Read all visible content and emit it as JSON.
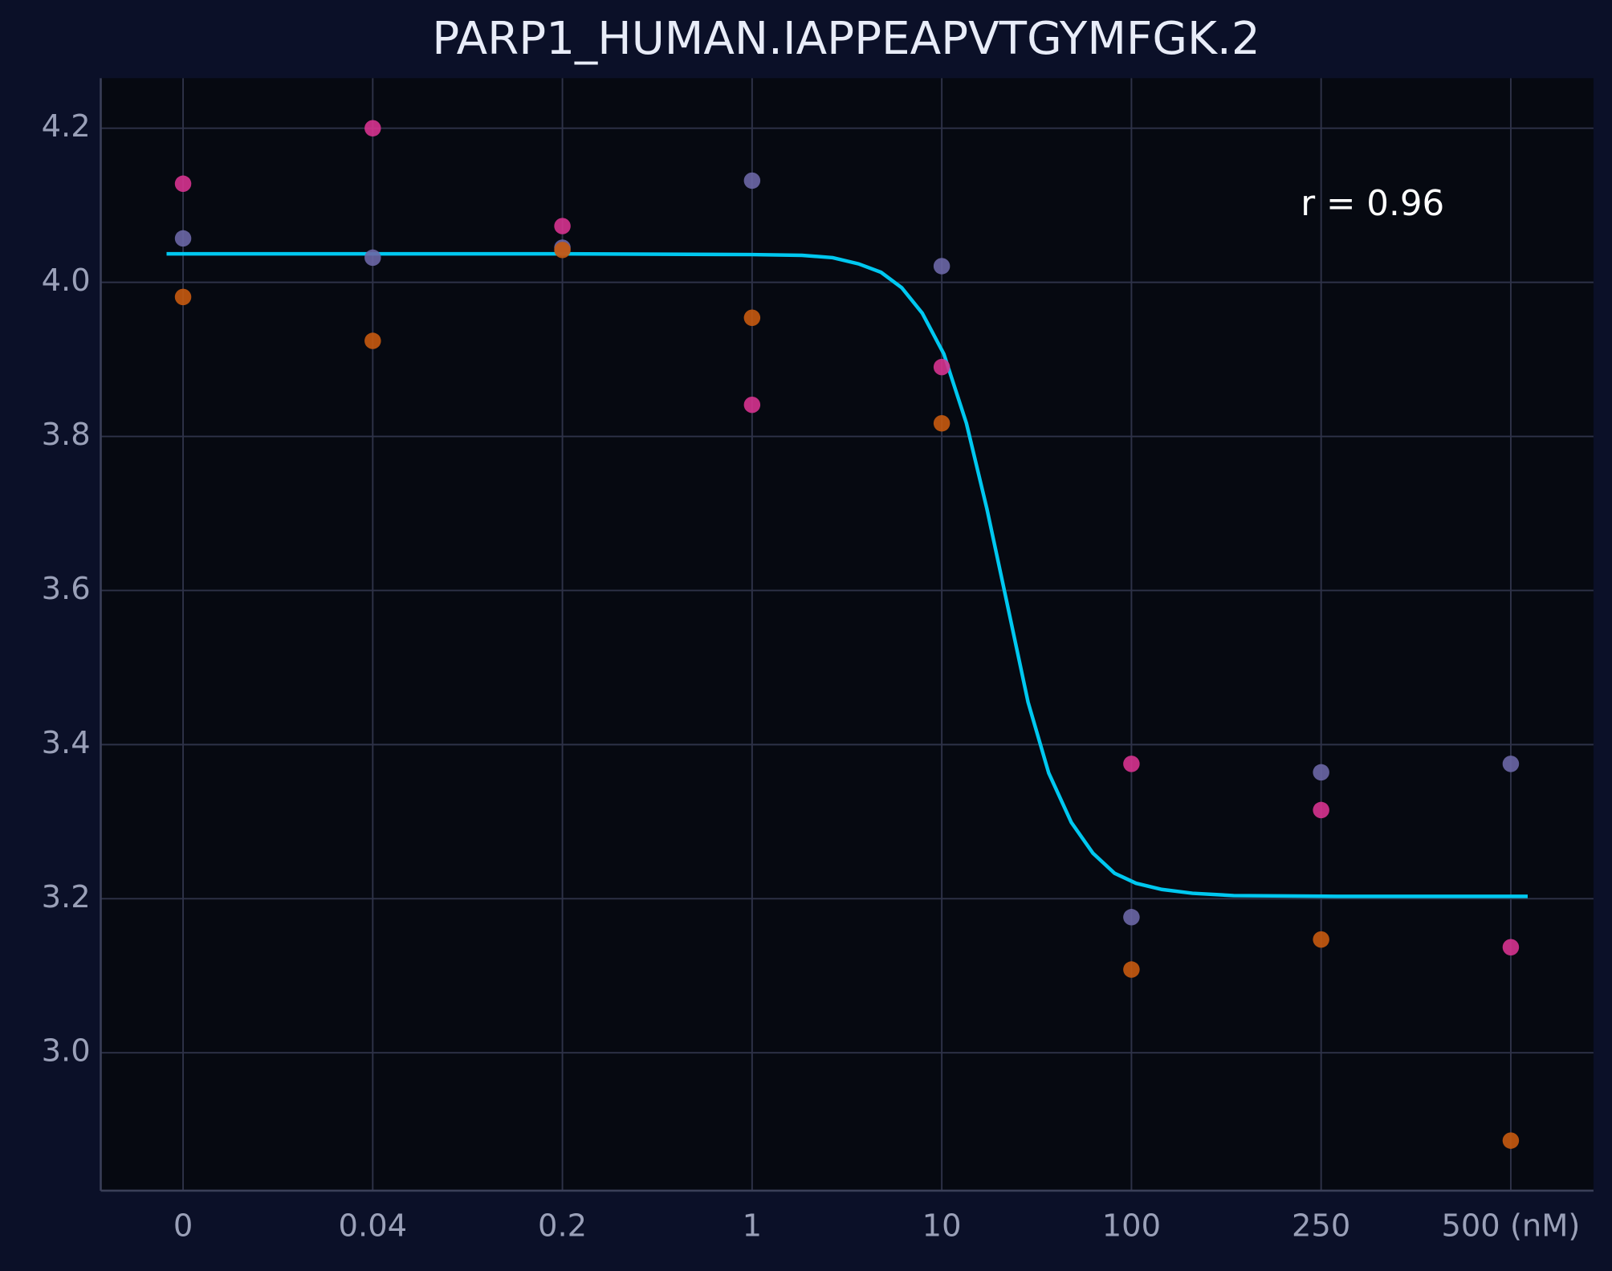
{
  "chart_data": {
    "type": "scatter",
    "title": "PARP1_HUMAN.IAPPEAPVTGYMFGK.2",
    "annotation": "r = 0.96",
    "categories": [
      "0",
      "0.04",
      "0.2",
      "1",
      "10",
      "100",
      "250",
      "500 (nM)"
    ],
    "series": [
      {
        "color": "#6c67a6",
        "values": [
          4.057,
          4.032,
          4.045,
          4.132,
          4.021,
          3.176,
          3.364,
          3.375
        ]
      },
      {
        "color": "#d6338f",
        "values": [
          4.128,
          4.2,
          4.073,
          3.841,
          3.89,
          3.375,
          3.315,
          3.137
        ]
      },
      {
        "color": "#c65a0f",
        "values": [
          3.981,
          3.924,
          4.042,
          3.954,
          3.817,
          3.108,
          3.147,
          2.886
        ]
      }
    ],
    "fit": {
      "color": "#00c8f0",
      "x": [
        -0.087,
        2.0,
        3.0,
        3.263,
        3.425,
        3.561,
        3.68,
        3.789,
        3.897,
        4.011,
        4.13,
        4.238,
        4.336,
        4.455,
        4.564,
        4.683,
        4.797,
        4.911,
        5.024,
        5.16,
        5.322,
        5.539,
        6.081,
        7.089
      ],
      "values": [
        4.037,
        4.037,
        4.036,
        4.035,
        4.032,
        4.024,
        4.013,
        3.993,
        3.96,
        3.907,
        3.817,
        3.706,
        3.593,
        3.455,
        3.363,
        3.299,
        3.259,
        3.233,
        3.22,
        3.212,
        3.207,
        3.204,
        3.203,
        3.203
      ]
    },
    "xlim": [
      -0.434,
      7.436
    ],
    "ylim": [
      2.821,
      4.265
    ],
    "yticks": [
      {
        "value": 3,
        "label": "3.0"
      },
      3.2,
      3.4,
      3.6,
      3.8,
      {
        "value": 4,
        "label": "4.0"
      },
      4.2
    ],
    "grid": true
  }
}
